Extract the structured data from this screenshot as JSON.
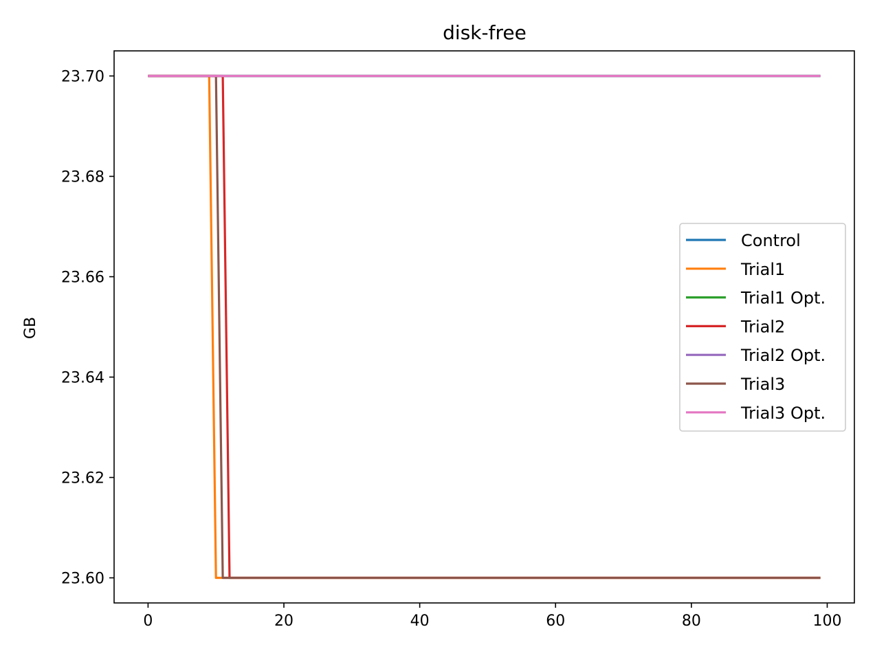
{
  "chart_data": {
    "type": "line",
    "title": "disk-free",
    "xlabel": "",
    "ylabel": "GB",
    "xlim": [
      -5,
      104
    ],
    "ylim": [
      23.595,
      23.705
    ],
    "xticks": [
      0,
      20,
      40,
      60,
      80,
      100
    ],
    "yticks": [
      23.6,
      23.62,
      23.64,
      23.66,
      23.68,
      23.7
    ],
    "xtick_labels": [
      "0",
      "20",
      "40",
      "60",
      "80",
      "100"
    ],
    "ytick_labels": [
      "23.60",
      "23.62",
      "23.64",
      "23.66",
      "23.68",
      "23.70"
    ],
    "grid": false,
    "legend_position": "center-right",
    "series": [
      {
        "name": "Control",
        "color": "#1f77b4",
        "x": [
          0,
          99
        ],
        "values": [
          23.7,
          23.7
        ]
      },
      {
        "name": "Trial1",
        "color": "#ff7f0e",
        "x": [
          0,
          9,
          10,
          99
        ],
        "values": [
          23.7,
          23.7,
          23.6,
          23.6
        ]
      },
      {
        "name": "Trial1 Opt.",
        "color": "#2ca02c",
        "x": [
          0,
          99
        ],
        "values": [
          23.7,
          23.7
        ]
      },
      {
        "name": "Trial2",
        "color": "#d62728",
        "x": [
          0,
          11,
          12,
          99
        ],
        "values": [
          23.7,
          23.7,
          23.6,
          23.6
        ]
      },
      {
        "name": "Trial2 Opt.",
        "color": "#9467bd",
        "x": [
          0,
          99
        ],
        "values": [
          23.7,
          23.7
        ]
      },
      {
        "name": "Trial3",
        "color": "#8c564b",
        "x": [
          0,
          10,
          11,
          99
        ],
        "values": [
          23.7,
          23.7,
          23.6,
          23.6
        ]
      },
      {
        "name": "Trial3 Opt.",
        "color": "#e377c2",
        "x": [
          0,
          99
        ],
        "values": [
          23.7,
          23.7
        ]
      }
    ]
  }
}
